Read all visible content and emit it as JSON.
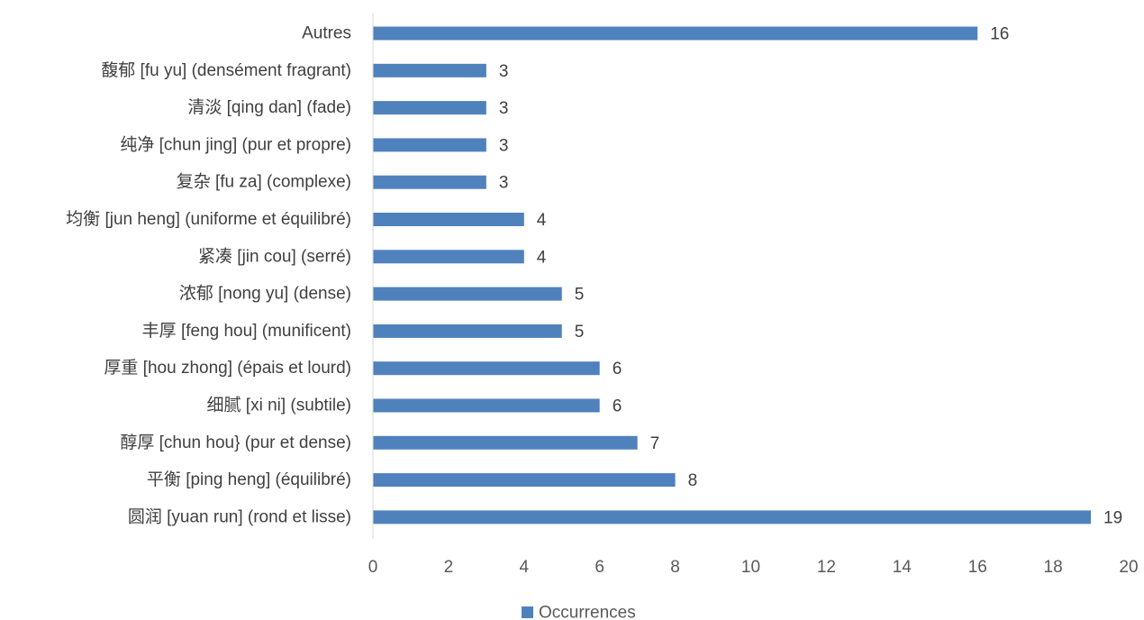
{
  "chart_data": {
    "type": "bar",
    "orientation": "horizontal",
    "categories": [
      "Autres",
      "馥郁 [fu yu] (densément fragrant)",
      "清淡 [qing dan] (fade)",
      "纯净 [chun jing] (pur et propre)",
      "复杂 [fu za] (complexe)",
      "均衡 [jun heng] (uniforme et équilibré)",
      "紧凑 [jin cou] (serré)",
      "浓郁 [nong yu] (dense)",
      "丰厚 [feng hou] (munificent)",
      "厚重 [hou zhong] (épais et lourd)",
      "细腻 [xi ni] (subtile)",
      "醇厚 [chun hou} (pur et dense)",
      "平衡 [ping heng] (équilibré)",
      "圆润 [yuan run] (rond et lisse)"
    ],
    "series": [
      {
        "name": "Occurrences",
        "values": [
          16,
          3,
          3,
          3,
          3,
          4,
          4,
          5,
          5,
          6,
          6,
          7,
          8,
          19
        ],
        "color": "#4f81bd"
      }
    ],
    "xlim": [
      0,
      20
    ],
    "xticks": [
      0,
      2,
      4,
      6,
      8,
      10,
      12,
      14,
      16,
      18,
      20
    ],
    "grid": false,
    "legend": "bottom",
    "data_labels": true
  }
}
